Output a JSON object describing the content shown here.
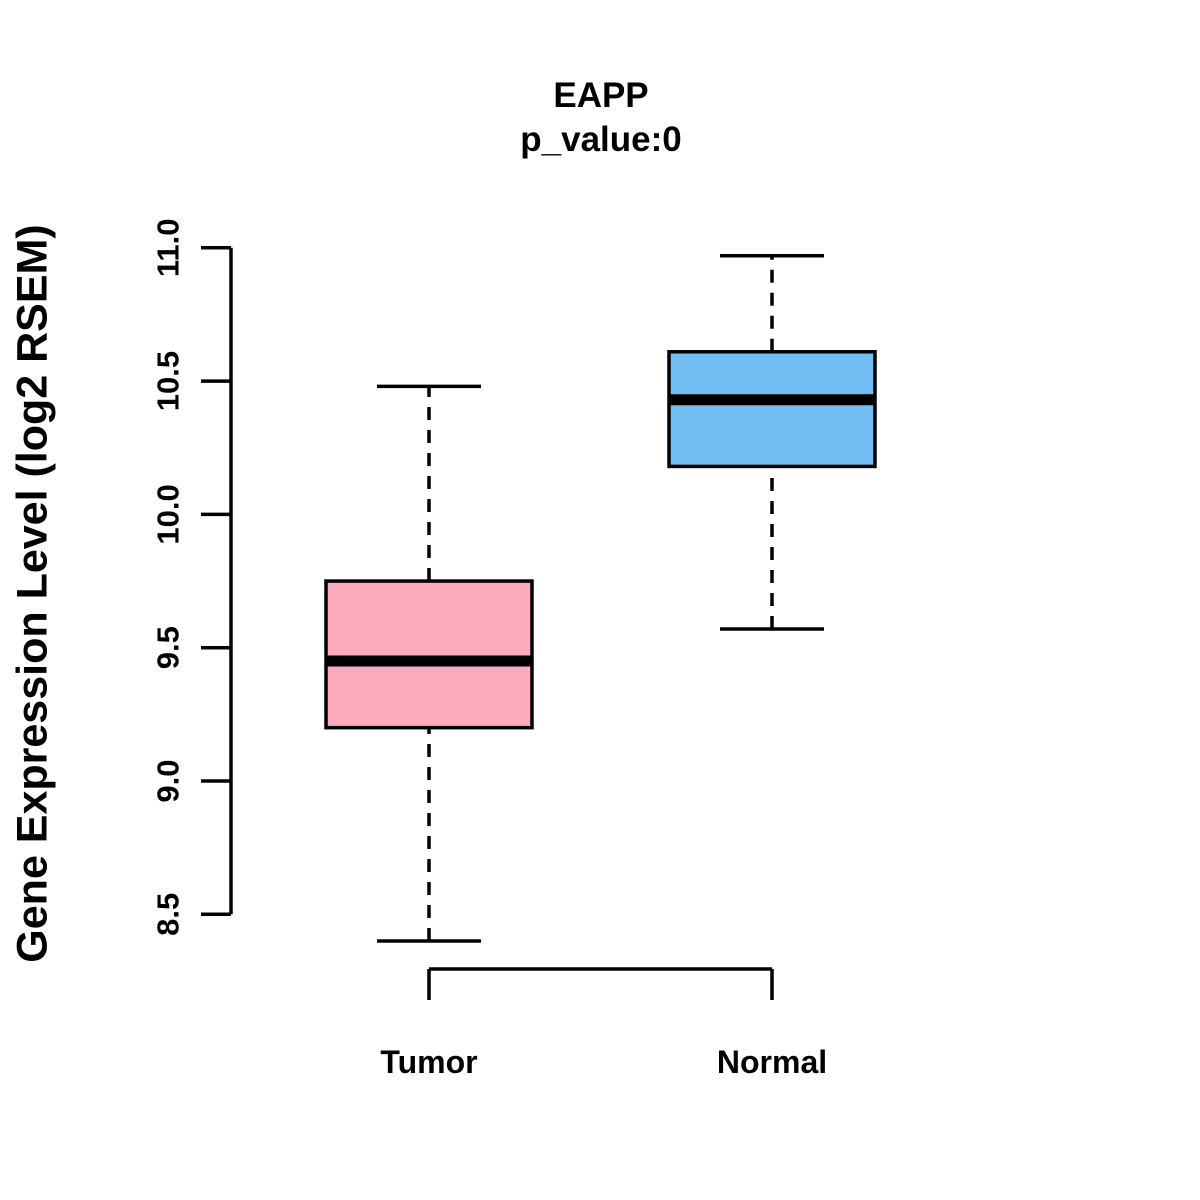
{
  "chart_data": {
    "type": "boxplot",
    "title": "EAPP",
    "subtitle": "p_value:0",
    "ylabel": "Gene Expression Level (log2 RSEM)",
    "xlabel": "",
    "ylim": [
      8.5,
      11.0
    ],
    "yticks": [
      8.5,
      9.0,
      9.5,
      10.0,
      10.5,
      11.0
    ],
    "ytick_labels": [
      "8.5",
      "9.0",
      "9.5",
      "10.0",
      "10.5",
      "11.0"
    ],
    "categories": [
      "Tumor",
      "Normal"
    ],
    "series": [
      {
        "name": "Tumor",
        "color": "#FCAABE",
        "whisker_low": 8.4,
        "q1": 9.2,
        "median": 9.45,
        "q3": 9.75,
        "whisker_high": 10.48
      },
      {
        "name": "Normal",
        "color": "#72BDF2",
        "whisker_low": 9.57,
        "q1": 10.18,
        "median": 10.43,
        "q3": 10.61,
        "whisker_high": 10.97
      }
    ],
    "grid": false,
    "legend_position": "none",
    "stroke_color": "#000000"
  }
}
